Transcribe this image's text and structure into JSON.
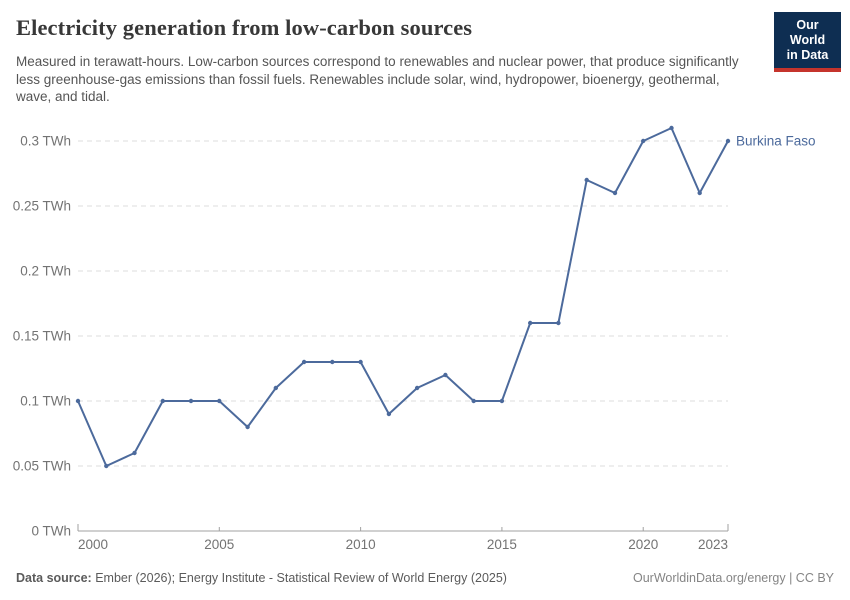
{
  "header": {
    "title": "Electricity generation from low-carbon sources",
    "subtitle": "Measured in terawatt-hours. Low-carbon sources correspond to renewables and nuclear power, that produce significantly less greenhouse-gas emissions than fossil fuels. Renewables include solar, wind, hydropower, bioenergy, geothermal, wave, and tidal."
  },
  "logo": {
    "line1": "Our World",
    "line2": "in Data",
    "bg_color": "#0e2e52",
    "stripe_color": "#c5342c"
  },
  "chart_data": {
    "type": "line",
    "title": "Electricity generation from low-carbon sources",
    "unit": "TWh",
    "x": [
      2000,
      2001,
      2002,
      2003,
      2004,
      2005,
      2006,
      2007,
      2008,
      2009,
      2010,
      2011,
      2012,
      2013,
      2014,
      2015,
      2016,
      2017,
      2018,
      2019,
      2020,
      2021,
      2022,
      2023
    ],
    "series": [
      {
        "name": "Burkina Faso",
        "values": [
          0.1,
          0.05,
          0.06,
          0.1,
          0.1,
          0.1,
          0.08,
          0.11,
          0.13,
          0.13,
          0.13,
          0.09,
          0.11,
          0.12,
          0.1,
          0.1,
          0.16,
          0.16,
          0.27,
          0.26,
          0.3,
          0.31,
          0.26,
          0.3
        ],
        "color": "#4c6a9c"
      }
    ],
    "xlabel": "",
    "ylabel": "",
    "xlim": [
      2000,
      2023
    ],
    "ylim": [
      0,
      0.3
    ],
    "grid": true,
    "legend_position": "right-of-last-point",
    "yticks": [
      {
        "v": 0,
        "label": "0 TWh"
      },
      {
        "v": 0.05,
        "label": "0.05 TWh"
      },
      {
        "v": 0.1,
        "label": "0.1 TWh"
      },
      {
        "v": 0.15,
        "label": "0.15 TWh"
      },
      {
        "v": 0.2,
        "label": "0.2 TWh"
      },
      {
        "v": 0.25,
        "label": "0.25 TWh"
      },
      {
        "v": 0.3,
        "label": "0.3 TWh"
      }
    ],
    "xticks": [
      {
        "v": 2000,
        "label": "2000"
      },
      {
        "v": 2005,
        "label": "2005"
      },
      {
        "v": 2010,
        "label": "2010"
      },
      {
        "v": 2015,
        "label": "2015"
      },
      {
        "v": 2020,
        "label": "2020"
      },
      {
        "v": 2023,
        "label": "2023"
      }
    ]
  },
  "footer": {
    "source_label": "Data source:",
    "source_text": " Ember (2026); Energy Institute - Statistical Review of World Energy (2025)",
    "right_text": "OurWorldinData.org/energy | CC BY"
  },
  "colors": {
    "line": "#4c6a9c",
    "grid": "#dddddd",
    "axis": "#a1a1a1",
    "axis_text": "#737373",
    "title": "#383838",
    "subtitle": "#555555"
  }
}
